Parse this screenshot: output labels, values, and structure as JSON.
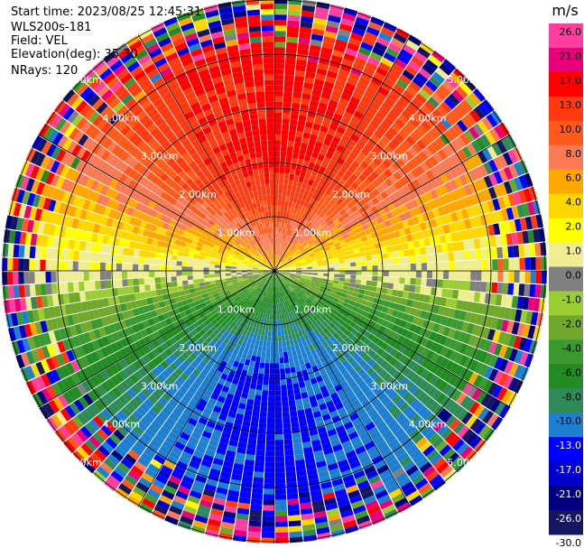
{
  "info": {
    "start_time": "Start time: 2023/08/25 12:45:31",
    "instrument": "WLS200s-181",
    "field": "Field: VEL",
    "elevation": "Elevation(deg): 35.30",
    "nrays": "NRays: 120"
  },
  "chart_data": {
    "type": "heatmap",
    "projection": "polar-ppi",
    "field": "VEL",
    "units": "m/s",
    "n_rays": 120,
    "range_rings_km": [
      1.0,
      2.0,
      3.0,
      4.0,
      5.0
    ],
    "range_ring_labels": [
      "1.00km",
      "2.00km",
      "3.00km",
      "4.00km",
      "5.00km"
    ],
    "colorbar": {
      "unit_label": "m/s",
      "tick_labels": [
        "26.0",
        "21.0",
        "17.0",
        "13.0",
        "10.0",
        "8.0",
        "6.0",
        "4.0",
        "2.0",
        "1.0",
        "0.0",
        "-1.0",
        "-2.0",
        "-4.0",
        "-6.0",
        "-8.0",
        "-10.0",
        "-13.0",
        "-17.0",
        "-21.0",
        "-26.0",
        "-30.0"
      ],
      "colors": [
        "#ff3fa0",
        "#e8007a",
        "#ff0000",
        "#ff3a10",
        "#ff5a1a",
        "#fa7a55",
        "#ffa700",
        "#ffd700",
        "#ffff00",
        "#eeee90",
        "#808080",
        "#9acd32",
        "#6fa82a",
        "#3a9a30",
        "#228b22",
        "#2e8b57",
        "#1e7fd0",
        "#0000ff",
        "#0000cd",
        "#000080",
        "#151560"
      ],
      "tick_colors": [
        "#000000",
        "#000000",
        "#000000",
        "#000000",
        "#000000",
        "#000000",
        "#000000",
        "#000000",
        "#000000",
        "#000000",
        "#000000",
        "#000000",
        "#000000",
        "#000000",
        "#000000",
        "#000000",
        "#000000",
        "#ffffff",
        "#ffffff",
        "#ffffff",
        "#ffffff",
        "#000000"
      ]
    },
    "dominant_pattern": [
      {
        "sector": "north",
        "value": 13.0
      },
      {
        "sector": "south",
        "value": -10.0
      },
      {
        "sector": "east-west",
        "value": 0.0
      }
    ]
  }
}
